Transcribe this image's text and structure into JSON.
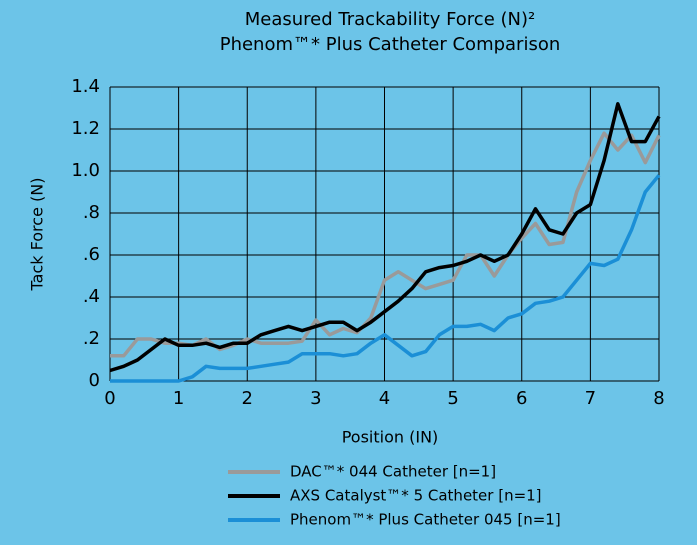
{
  "chart_data": {
    "type": "line",
    "title": [
      "Measured Trackability Force (N)²",
      "Phenom™* Plus Catheter Comparison"
    ],
    "x_label": "Position (IN)",
    "y_label": "Tack Force (N)",
    "x": [
      0,
      0.2,
      0.4,
      0.6,
      0.8,
      1,
      1.2,
      1.4,
      1.6,
      1.8,
      2,
      2.2,
      2.4,
      2.6,
      2.8,
      3,
      3.2,
      3.4,
      3.6,
      3.8,
      4,
      4.2,
      4.4,
      4.6,
      4.8,
      5,
      5.2,
      5.4,
      5.6,
      5.8,
      6,
      6.2,
      6.4,
      6.6,
      6.8,
      7,
      7.2,
      7.4,
      7.6,
      7.8,
      8
    ],
    "series": [
      {
        "name": "DAC™* 044 Catheter [n=1]",
        "color": "#9a9a9a",
        "values": [
          0.12,
          0.12,
          0.2,
          0.2,
          0.18,
          0.18,
          0.17,
          0.2,
          0.15,
          0.17,
          0.2,
          0.18,
          0.18,
          0.18,
          0.19,
          0.29,
          0.22,
          0.25,
          0.23,
          0.3,
          0.48,
          0.52,
          0.48,
          0.44,
          0.46,
          0.48,
          0.6,
          0.6,
          0.5,
          0.6,
          0.68,
          0.75,
          0.65,
          0.66,
          0.9,
          1.05,
          1.18,
          1.1,
          1.17,
          1.04,
          1.17
        ]
      },
      {
        "name": "AXS Catalyst™* 5 Catheter [n=1]",
        "color": "#000000",
        "values": [
          0.05,
          0.07,
          0.1,
          0.15,
          0.2,
          0.17,
          0.17,
          0.18,
          0.16,
          0.18,
          0.18,
          0.22,
          0.24,
          0.26,
          0.24,
          0.26,
          0.28,
          0.28,
          0.24,
          0.28,
          0.33,
          0.38,
          0.44,
          0.52,
          0.54,
          0.55,
          0.57,
          0.6,
          0.57,
          0.6,
          0.7,
          0.82,
          0.72,
          0.7,
          0.8,
          0.84,
          1.05,
          1.32,
          1.14,
          1.14,
          1.26
        ]
      },
      {
        "name": "Phenom™* Plus Catheter 045 [n=1]",
        "color": "#1b8fd6",
        "values": [
          0,
          0,
          0,
          0,
          0,
          0,
          0.02,
          0.07,
          0.06,
          0.06,
          0.06,
          0.07,
          0.08,
          0.09,
          0.13,
          0.13,
          0.13,
          0.12,
          0.13,
          0.18,
          0.22,
          0.17,
          0.12,
          0.14,
          0.22,
          0.26,
          0.26,
          0.27,
          0.24,
          0.3,
          0.32,
          0.37,
          0.38,
          0.4,
          0.48,
          0.56,
          0.55,
          0.58,
          0.72,
          0.9,
          0.98
        ]
      }
    ],
    "xlim": [
      0,
      8
    ],
    "xticks": [
      0,
      1,
      2,
      3,
      4,
      5,
      6,
      7,
      8
    ],
    "ylim": [
      0,
      1.4
    ],
    "yticks": [
      0,
      {
        "value": 0.2,
        "label": ".2"
      },
      {
        "value": 0.4,
        "label": ".4"
      },
      {
        "value": 0.6,
        "label": ".6"
      },
      {
        "value": 0.8,
        "label": ".8"
      },
      {
        "value": 1.0,
        "label": "1.0"
      },
      1.2,
      1.4
    ],
    "grid": true,
    "legend": "bottom"
  }
}
